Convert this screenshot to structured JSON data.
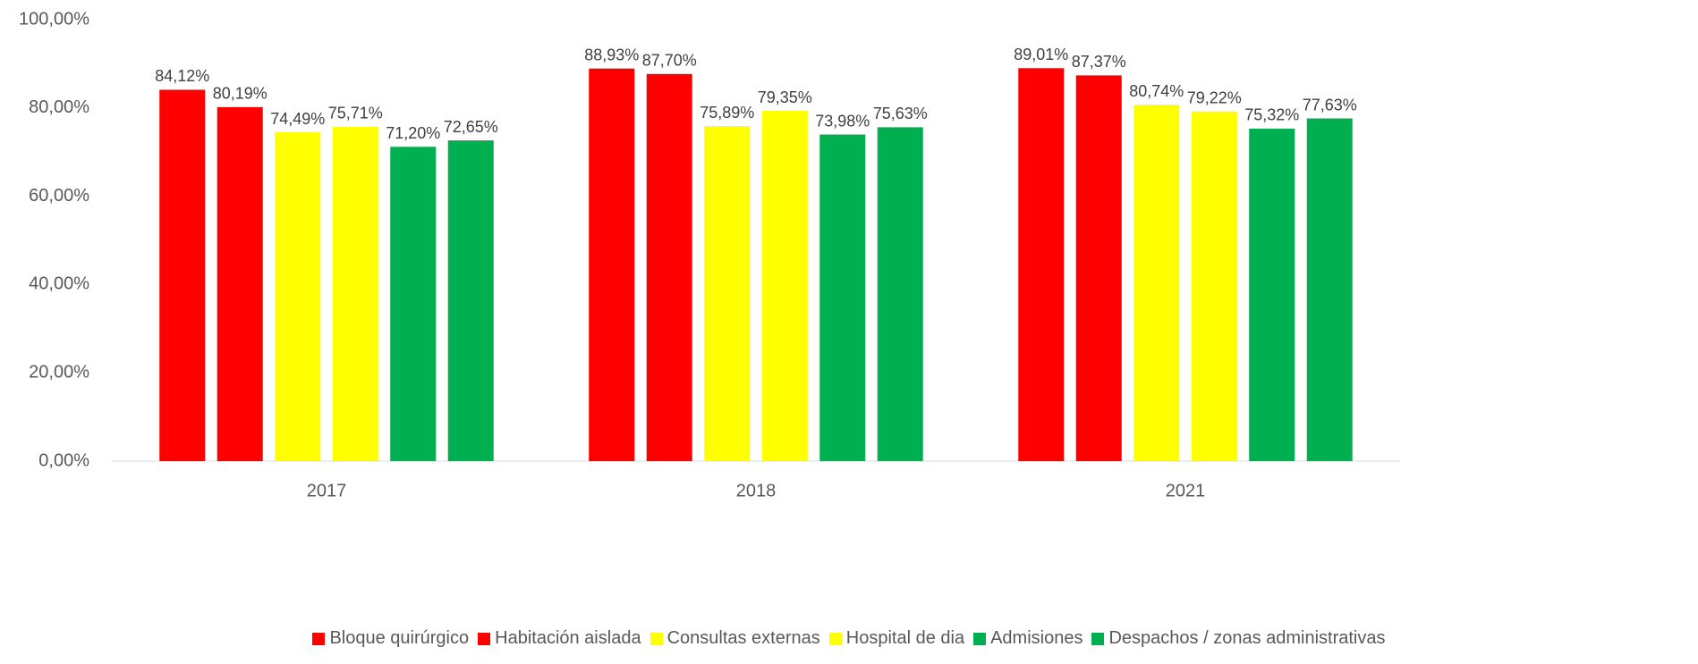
{
  "chart_data": {
    "type": "bar",
    "categories": [
      "2017",
      "2018",
      "2021"
    ],
    "series": [
      {
        "name": "Bloque quirúrgico",
        "color": "#ff0000",
        "values": [
          84.12,
          88.93,
          89.01
        ],
        "value_labels": [
          "84,12%",
          "88,93%",
          "89,01%"
        ]
      },
      {
        "name": "Habitación aislada",
        "color": "#ff0000",
        "values": [
          80.19,
          87.7,
          87.37
        ],
        "value_labels": [
          "80,19%",
          "87,70%",
          "87,37%"
        ]
      },
      {
        "name": "Consultas externas",
        "color": "#ffff00",
        "values": [
          74.49,
          75.89,
          80.74
        ],
        "value_labels": [
          "74,49%",
          "75,89%",
          "80,74%"
        ]
      },
      {
        "name": "Hospital de dia",
        "color": "#ffff00",
        "values": [
          75.71,
          79.35,
          79.22
        ],
        "value_labels": [
          "75,71%",
          "79,35%",
          "79,22%"
        ]
      },
      {
        "name": "Admisiones",
        "color": "#00b050",
        "values": [
          71.2,
          73.98,
          75.32
        ],
        "value_labels": [
          "71,20%",
          "73,98%",
          "75,32%"
        ]
      },
      {
        "name": "Despachos / zonas administrativas",
        "color": "#00b050",
        "values": [
          72.65,
          75.63,
          77.63
        ],
        "value_labels": [
          "72,65%",
          "75,63%",
          "77,63%"
        ]
      }
    ],
    "ylim": [
      0,
      100
    ],
    "yticks": [
      {
        "value": 0,
        "label": "0,00%"
      },
      {
        "value": 20,
        "label": "20,00%"
      },
      {
        "value": 40,
        "label": "40,00%"
      },
      {
        "value": 60,
        "label": "60,00%"
      },
      {
        "value": 80,
        "label": "80,00%"
      },
      {
        "value": 100,
        "label": "100,00%"
      }
    ],
    "grid": false,
    "legend": "bottom"
  }
}
